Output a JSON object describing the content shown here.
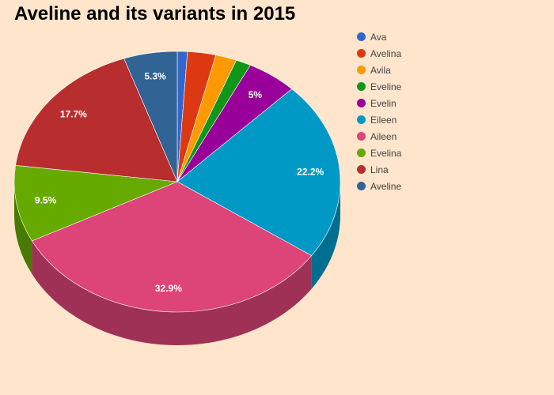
{
  "chart_data": {
    "type": "pie",
    "title": "Aveline and its variants in 2015",
    "slices": [
      {
        "name": "Ava",
        "value": 1.0,
        "color": "#3366CC",
        "label": ""
      },
      {
        "name": "Avelina",
        "value": 2.8,
        "color": "#DC3912",
        "label": ""
      },
      {
        "name": "Avila",
        "value": 2.1,
        "color": "#FF9900",
        "label": ""
      },
      {
        "name": "Eveline",
        "value": 1.5,
        "color": "#109618",
        "label": ""
      },
      {
        "name": "Evelin",
        "value": 5.0,
        "color": "#990099",
        "label": "5%"
      },
      {
        "name": "Eileen",
        "value": 22.2,
        "color": "#0099C6",
        "label": "22.2%"
      },
      {
        "name": "Aileen",
        "value": 32.9,
        "color": "#DD4477",
        "label": "32.9%"
      },
      {
        "name": "Evelina",
        "value": 9.5,
        "color": "#66AA00",
        "label": "9.5%"
      },
      {
        "name": "Lina",
        "value": 17.7,
        "color": "#B82E2E",
        "label": "17.7%"
      },
      {
        "name": "Aveline",
        "value": 5.3,
        "color": "#316395",
        "label": "5.3%"
      }
    ],
    "legend_position": "right",
    "style": "3d"
  }
}
